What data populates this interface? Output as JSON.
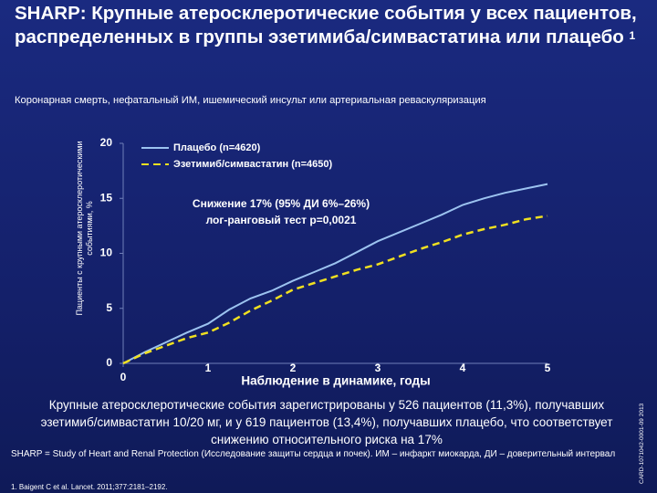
{
  "chart_data": {
    "type": "line",
    "title": "SHARP: Крупные атеросклеротические события у всех пациентов, распределенных в группы эзетимиба/симвастатина или плацебо",
    "title_note": "1",
    "subtitle": "Коронарная смерть, нефатальный ИМ, ишемический инсульт или артериальная реваскуляризация",
    "y_label": "Пациенты с крупными атеросклеротическими событиями, %",
    "x_label": "Наблюдение в динамике, годы",
    "annotations": [
      "Снижение 17% (95% ДИ 6%–26%)",
      "лог-ранговый тест p=0,0021"
    ],
    "x": [
      0,
      0.25,
      0.5,
      0.75,
      1,
      1.25,
      1.5,
      1.75,
      2,
      2.25,
      2.5,
      2.75,
      3,
      3.25,
      3.5,
      3.75,
      4,
      4.25,
      4.5,
      4.75,
      5
    ],
    "series": [
      {
        "name": "Плацебо (n=4620)",
        "color": "#9cc3f0",
        "style": "solid",
        "values": [
          0,
          1.0,
          1.9,
          2.8,
          3.6,
          4.9,
          5.9,
          6.6,
          7.5,
          8.3,
          9.1,
          10.1,
          11.1,
          11.9,
          12.7,
          13.5,
          14.4,
          15.0,
          15.5,
          15.9,
          16.3
        ]
      },
      {
        "name": "Эзетимиб/симвастатин (n=4650)",
        "color": "#f0e020",
        "style": "dashed",
        "values": [
          0,
          0.9,
          1.6,
          2.3,
          2.8,
          3.7,
          4.8,
          5.7,
          6.7,
          7.3,
          7.9,
          8.5,
          9.0,
          9.7,
          10.4,
          11.0,
          11.7,
          12.2,
          12.6,
          13.1,
          13.4
        ]
      }
    ],
    "xlim": [
      0,
      5
    ],
    "xticks": [
      0,
      1,
      2,
      3,
      4,
      5
    ],
    "ylim": [
      0,
      20
    ],
    "yticks": [
      0,
      5,
      10,
      15,
      20
    ],
    "summary": "Крупные атеросклеротические события зарегистрированы у 526 пациентов (11,3%), получавших эзетимиб/симвастатин 10/20 мг, и у 619 пациентов (13,4%), получавших плацебо, что соответствует снижению относительного риска на 17%",
    "footnote": "SHARP = Study of Heart and Renal Protection (Исследование защиты сердца и почек). ИМ – инфаркт миокарда, ДИ – доверительный интервал",
    "reference": "1. Baigent C et al. Lancet. 2011;377:2181–2192.",
    "code": "CARD-1071042-0001-09 2013"
  }
}
